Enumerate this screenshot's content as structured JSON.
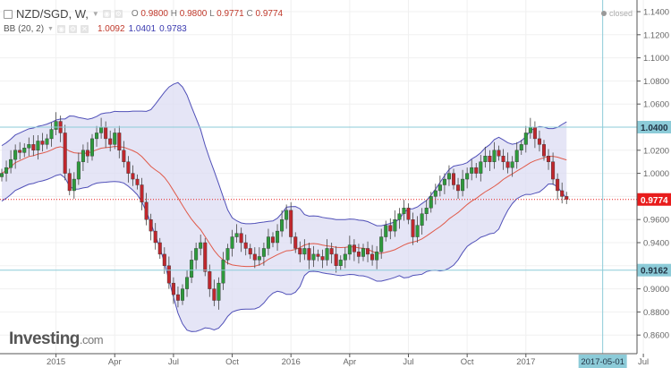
{
  "header": {
    "symbol": "NZD/SGD, W,",
    "o_label": "O",
    "o": "0.9800",
    "h_label": "H",
    "h": "0.9800",
    "l_label": "L",
    "l": "0.9771",
    "c_label": "C",
    "c": "0.9774"
  },
  "indicator": {
    "name": "BB (20, 2)",
    "basis": "1.0092",
    "upper": "1.0401",
    "lower": "0.9783"
  },
  "status": "closed",
  "logo": {
    "main": "Investing",
    "suffix": ".com"
  },
  "colors": {
    "up": "#2e9a3c",
    "down": "#c0272d",
    "band_fill": "#dcdcf3",
    "band_stroke": "#5050b8",
    "basis": "#e05a4a",
    "cyan": "#8ccbd8",
    "last": "#e81c1c"
  },
  "chart_data": {
    "type": "candlestick",
    "title": "NZD/SGD, W,",
    "ylim": [
      0.85,
      1.15
    ],
    "y_ticks": [
      "1.1400",
      "1.1200",
      "1.1000",
      "1.0800",
      "1.0600",
      "1.0400",
      "1.0200",
      "1.0000",
      "0.9800",
      "0.9600",
      "0.9400",
      "0.9200",
      "0.9000",
      "0.8800",
      "0.8600"
    ],
    "x_ticks": [
      {
        "label": "2015",
        "week": 12
      },
      {
        "label": "Apr",
        "week": 25
      },
      {
        "label": "Jul",
        "week": 38
      },
      {
        "label": "Oct",
        "week": 51
      },
      {
        "label": "2016",
        "week": 64
      },
      {
        "label": "Apr",
        "week": 77
      },
      {
        "label": "Jul",
        "week": 90
      },
      {
        "label": "Oct",
        "week": 103
      },
      {
        "label": "2017",
        "week": 116
      },
      {
        "label": "Jul",
        "week": 142
      }
    ],
    "crosshair": {
      "label": "2017-05-01",
      "week": 133
    },
    "hlines": [
      {
        "value": 1.04,
        "label": "1.0400"
      },
      {
        "value": 0.9162,
        "label": "0.9162"
      }
    ],
    "last_price": {
      "value": 0.9774,
      "label": "0.9774"
    },
    "closes": [
      1.0,
      1.005,
      1.012,
      1.02,
      1.018,
      1.022,
      1.025,
      1.02,
      1.028,
      1.025,
      1.03,
      1.038,
      1.045,
      1.035,
      1.0,
      0.985,
      0.995,
      1.01,
      1.02,
      1.015,
      1.03,
      1.035,
      1.04,
      1.03,
      1.025,
      1.035,
      1.02,
      1.01,
      1.0,
      0.995,
      0.99,
      0.975,
      0.96,
      0.95,
      0.94,
      0.93,
      0.92,
      0.905,
      0.895,
      0.89,
      0.9,
      0.91,
      0.925,
      0.935,
      0.94,
      0.915,
      0.9,
      0.89,
      0.905,
      0.925,
      0.935,
      0.945,
      0.948,
      0.94,
      0.935,
      0.93,
      0.925,
      0.928,
      0.935,
      0.945,
      0.94,
      0.95,
      0.96,
      0.968,
      0.945,
      0.935,
      0.93,
      0.935,
      0.925,
      0.93,
      0.928,
      0.925,
      0.935,
      0.93,
      0.92,
      0.925,
      0.93,
      0.938,
      0.932,
      0.928,
      0.935,
      0.93,
      0.925,
      0.932,
      0.945,
      0.955,
      0.95,
      0.96,
      0.965,
      0.97,
      0.96,
      0.945,
      0.955,
      0.965,
      0.97,
      0.98,
      0.985,
      0.99,
      0.995,
      1.0,
      0.99,
      0.985,
      0.995,
      1.0,
      1.005,
      1.0,
      1.01,
      1.015,
      1.01,
      1.02,
      1.015,
      1.01,
      1.005,
      1.01,
      1.02,
      1.025,
      1.035,
      1.04,
      1.03,
      1.025,
      1.015,
      1.01,
      0.995,
      0.985,
      0.98,
      0.9774
    ]
  }
}
